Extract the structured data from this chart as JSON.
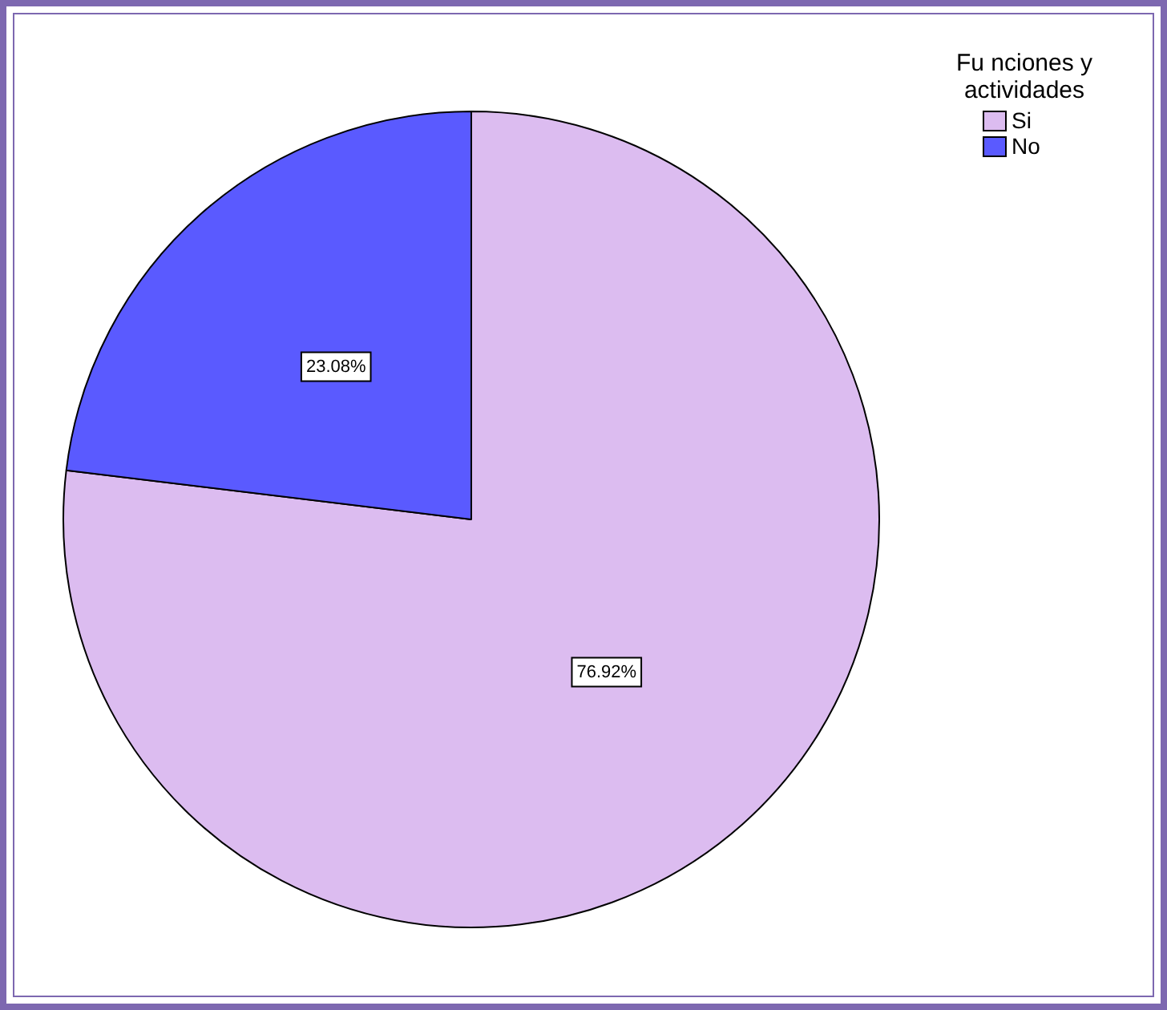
{
  "chart_data": {
    "type": "pie",
    "legend_title": "Fu nciones y actividades",
    "categories": [
      "Si",
      "No"
    ],
    "values": [
      76.92,
      23.08
    ],
    "colors": [
      "#dcbcf0",
      "#5a5aff"
    ],
    "value_labels": [
      "76.92%",
      "23.08%"
    ],
    "legend": "top right"
  }
}
